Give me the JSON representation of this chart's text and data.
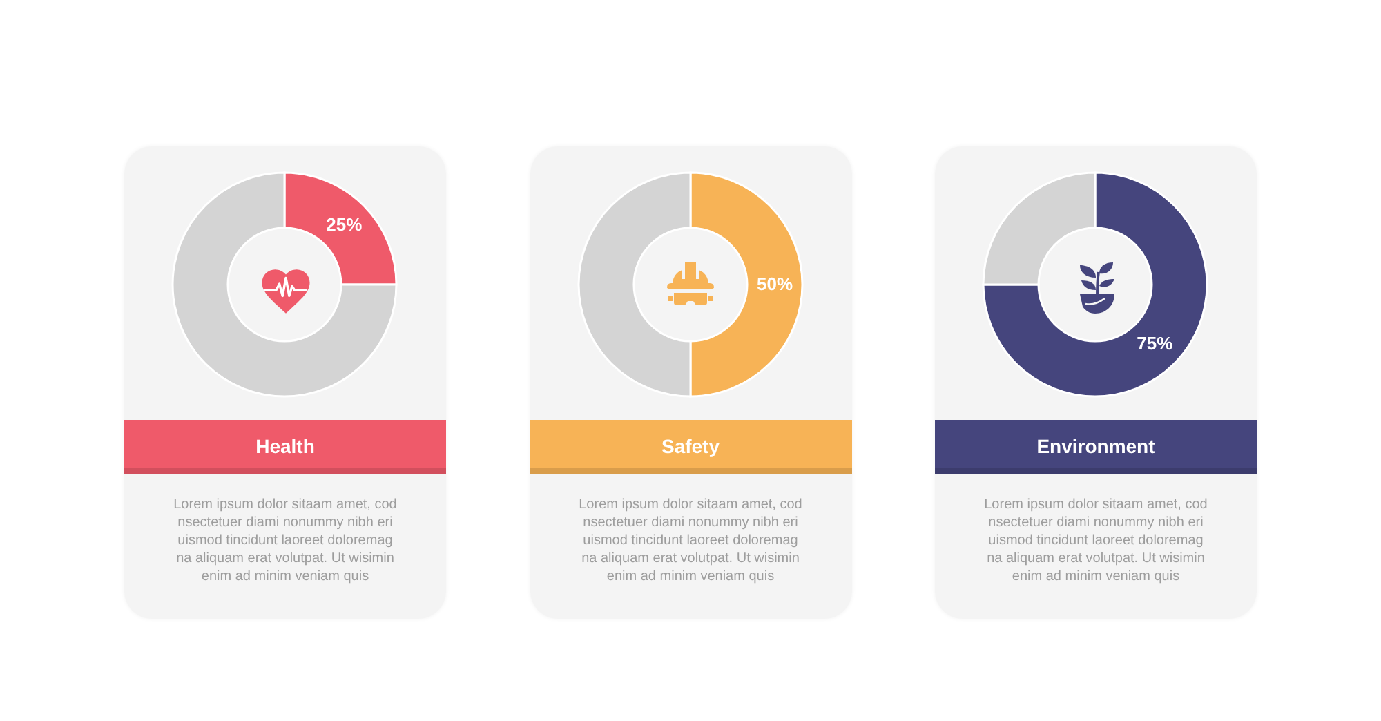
{
  "chart_data": [
    {
      "type": "donut",
      "title": "Health",
      "categories": [
        null,
        null
      ],
      "values": [
        25,
        75
      ],
      "colors": [
        "#ef5a6a",
        "#d4d4d4"
      ],
      "value_labels": [
        "25%",
        null
      ],
      "annotations": [
        "Lorem ipsum dolor sitaam amet, cod\nnsectetuer diami nonummy  nibh eri\nuismod tincidunt laoreet doloremag\nna aliquam erat volutpat. Ut wisimin\nenim ad minim veniam quis"
      ]
    },
    {
      "type": "donut",
      "title": "Safety",
      "categories": [
        null,
        null
      ],
      "values": [
        50,
        50
      ],
      "colors": [
        "#f7b356",
        "#d4d4d4"
      ],
      "value_labels": [
        "50%",
        null
      ],
      "annotations": [
        "Lorem ipsum dolor sitaam amet, cod\nnsectetuer diami nonummy  nibh eri\nuismod tincidunt laoreet doloremag\nna aliquam erat volutpat. Ut wisimin\nenim ad minim veniam quis"
      ]
    },
    {
      "type": "donut",
      "title": "Environment",
      "categories": [
        null,
        null
      ],
      "values": [
        75,
        25
      ],
      "colors": [
        "#45457d",
        "#d4d4d4"
      ],
      "value_labels": [
        "75%",
        null
      ],
      "annotations": [
        "Lorem ipsum dolor sitaam amet, cod\nnsectetuer diami nonummy  nibh eri\nuismod tincidunt laoreet doloremag\nna aliquam erat volutpat. Ut wisimin\nenim ad minim veniam quis"
      ]
    }
  ]
}
